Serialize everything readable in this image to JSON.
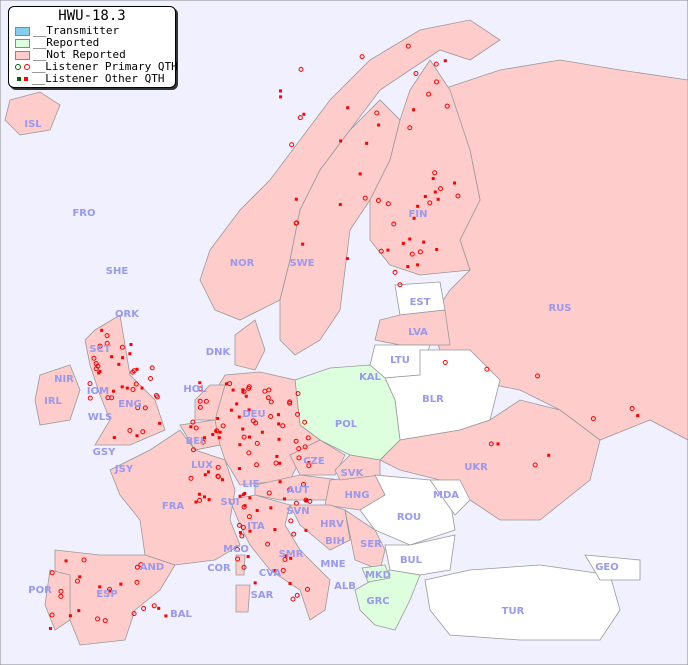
{
  "legend": {
    "title": "HWU-18.3",
    "items": [
      {
        "label": "__Transmitter",
        "color": "#88ccee"
      },
      {
        "label": "__Reported",
        "color": "#ddffdd"
      },
      {
        "label": "__Not Reported",
        "color": "#ffcccc"
      },
      {
        "label": "__Listener Primary QTH",
        "colors": [
          "#006600",
          "#ff0000"
        ]
      },
      {
        "label": "__Listener Other QTH",
        "colors": [
          "#006600",
          "#ff0000"
        ]
      }
    ]
  },
  "colors": {
    "sea": "#f0f0ff",
    "not_reported": "#ffcccc",
    "reported": "#ddffdd",
    "no_data": "#ffffff",
    "listener": "#ff0000",
    "label": "#9999ee"
  },
  "countries": [
    "ISL",
    "FRO",
    "SHE",
    "ORK",
    "NOR",
    "SWE",
    "FIN",
    "RUS",
    "EST",
    "LVA",
    "LTU",
    "KAL",
    "BLR",
    "DNK",
    "HOL",
    "DEU",
    "POL",
    "IRL",
    "NIR",
    "SCT",
    "IOM",
    "WLS",
    "ENG",
    "GSY",
    "JSY",
    "BEL",
    "LUX",
    "CZE",
    "SVK",
    "UKR",
    "FRA",
    "SUI",
    "LIE",
    "AUT",
    "HNG",
    "MDA",
    "SVN",
    "HRV",
    "ROU",
    "ITA",
    "BIH",
    "SER",
    "MCO",
    "COR",
    "SMR",
    "CVA",
    "MNE",
    "BUL",
    "GEO",
    "AND",
    "MKD",
    "ALB",
    "POR",
    "ESP",
    "SAR",
    "GRC",
    "TUR",
    "BAL"
  ],
  "reported_countries": [
    "POL",
    "GRC",
    "MKD"
  ]
}
